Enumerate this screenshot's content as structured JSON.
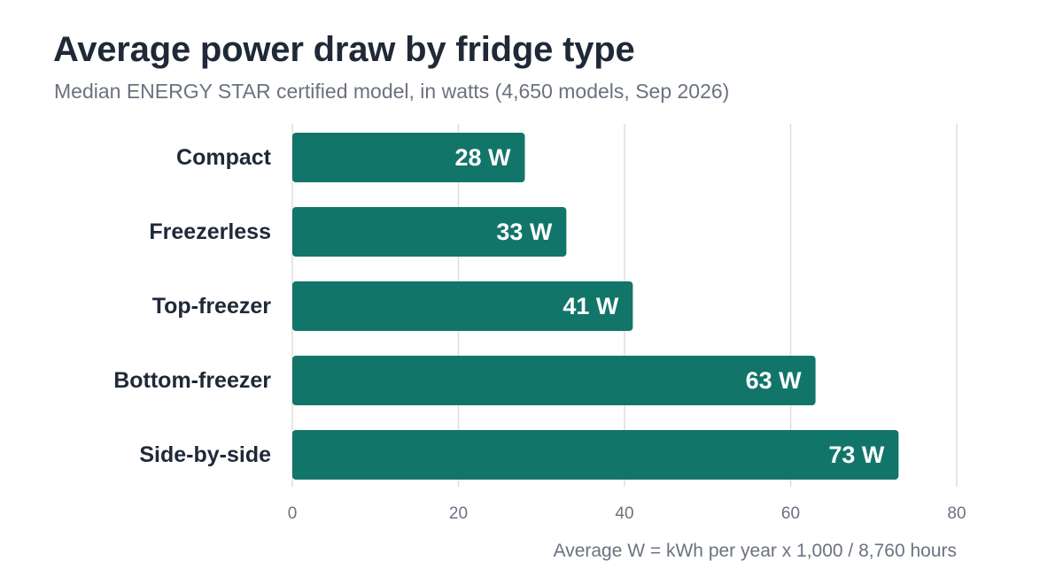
{
  "header": {
    "title": "Average power draw by fridge type",
    "subtitle": "Median ENERGY STAR certified model, in watts (4,650 models, Sep 2026)"
  },
  "footnote": "Average W = kWh per year x 1,000 / 8,760 hours",
  "colors": {
    "bar": "#127569",
    "grid": "#dddddd",
    "category_label": "#1f2937",
    "tick_label": "#6b7280",
    "value_label": "#ffffff"
  },
  "chart_data": {
    "type": "bar",
    "orientation": "horizontal",
    "categories": [
      "Compact",
      "Freezerless",
      "Top-freezer",
      "Bottom-freezer",
      "Side-by-side"
    ],
    "values": [
      28,
      33,
      41,
      63,
      73
    ],
    "value_labels": [
      "28 W",
      "33 W",
      "41 W",
      "63 W",
      "73 W"
    ],
    "xlim": [
      0,
      80
    ],
    "x_ticks": [
      0,
      20,
      40,
      60,
      80
    ],
    "x_tick_labels": [
      "0",
      "20",
      "40",
      "60",
      "80"
    ],
    "grid": true,
    "legend": "none"
  }
}
